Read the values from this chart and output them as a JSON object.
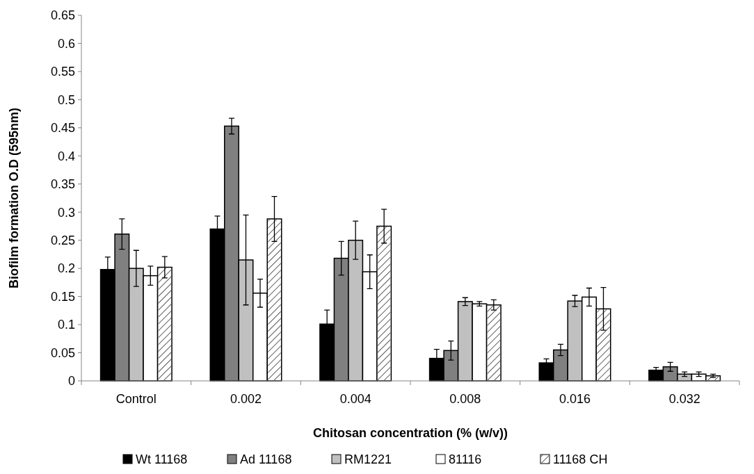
{
  "chart_data": {
    "type": "bar",
    "xlabel": "Chitosan concentration (% (w/v))",
    "ylabel": "Biofilm formation O.D (595nm)",
    "categories": [
      "Control",
      "0.002",
      "0.004",
      "0.008",
      "0.016",
      "0.032"
    ],
    "series": [
      {
        "name": "Wt 11168",
        "color": "#000000",
        "values": [
          0.198,
          0.27,
          0.101,
          0.04,
          0.032,
          0.019
        ],
        "errors": [
          0.022,
          0.023,
          0.025,
          0.016,
          0.007,
          0.005
        ]
      },
      {
        "name": "Ad 11168",
        "color": "#808080",
        "values": [
          0.261,
          0.453,
          0.218,
          0.054,
          0.055,
          0.025
        ],
        "errors": [
          0.027,
          0.014,
          0.03,
          0.017,
          0.01,
          0.008
        ]
      },
      {
        "name": "RM1221",
        "color": "#c0c0c0",
        "values": [
          0.2,
          0.215,
          0.25,
          0.141,
          0.142,
          0.012
        ],
        "errors": [
          0.032,
          0.08,
          0.034,
          0.007,
          0.01,
          0.004
        ]
      },
      {
        "name": "81116",
        "color": "#ffffff",
        "values": [
          0.187,
          0.156,
          0.194,
          0.137,
          0.149,
          0.012
        ],
        "errors": [
          0.017,
          0.025,
          0.03,
          0.004,
          0.016,
          0.004
        ]
      },
      {
        "name": "11168 CH",
        "color": "#ffffff",
        "values": [
          0.202,
          0.288,
          0.275,
          0.135,
          0.128,
          0.009
        ],
        "errors": [
          0.019,
          0.04,
          0.03,
          0.009,
          0.038,
          0.003
        ]
      }
    ],
    "ylim": [
      0,
      0.65
    ],
    "yticks": [
      0,
      0.05,
      0.1,
      0.15,
      0.2,
      0.25,
      0.3,
      0.35,
      0.4,
      0.45,
      0.5,
      0.55,
      0.6,
      0.65
    ],
    "grid": false,
    "legend": "bottom"
  }
}
